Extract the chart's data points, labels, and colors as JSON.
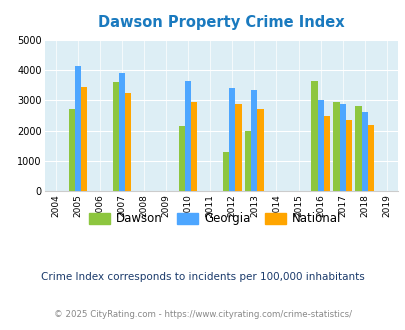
{
  "title": "Dawson Property Crime Index",
  "title_color": "#1a7abf",
  "years": [
    2005,
    2007,
    2010,
    2012,
    2013,
    2016,
    2017,
    2018
  ],
  "dawson": [
    2700,
    3600,
    2170,
    1300,
    2000,
    3630,
    2940,
    2800
  ],
  "georgia": [
    4130,
    3900,
    3650,
    3420,
    3350,
    3010,
    2890,
    2600
  ],
  "national": [
    3450,
    3230,
    2960,
    2870,
    2730,
    2470,
    2360,
    2200
  ],
  "dawson_color": "#8dc63f",
  "georgia_color": "#4da6ff",
  "national_color": "#ffa500",
  "bg_color": "#ddeef5",
  "ylim": [
    0,
    5000
  ],
  "yticks": [
    0,
    1000,
    2000,
    3000,
    4000,
    5000
  ],
  "xtick_years": [
    2004,
    2005,
    2006,
    2007,
    2008,
    2009,
    2010,
    2011,
    2012,
    2013,
    2014,
    2015,
    2016,
    2017,
    2018,
    2019
  ],
  "note": "Crime Index corresponds to incidents per 100,000 inhabitants",
  "footer": "© 2025 CityRating.com - https://www.cityrating.com/crime-statistics/",
  "legend_labels": [
    "Dawson",
    "Georgia",
    "National"
  ],
  "bar_width": 0.28
}
